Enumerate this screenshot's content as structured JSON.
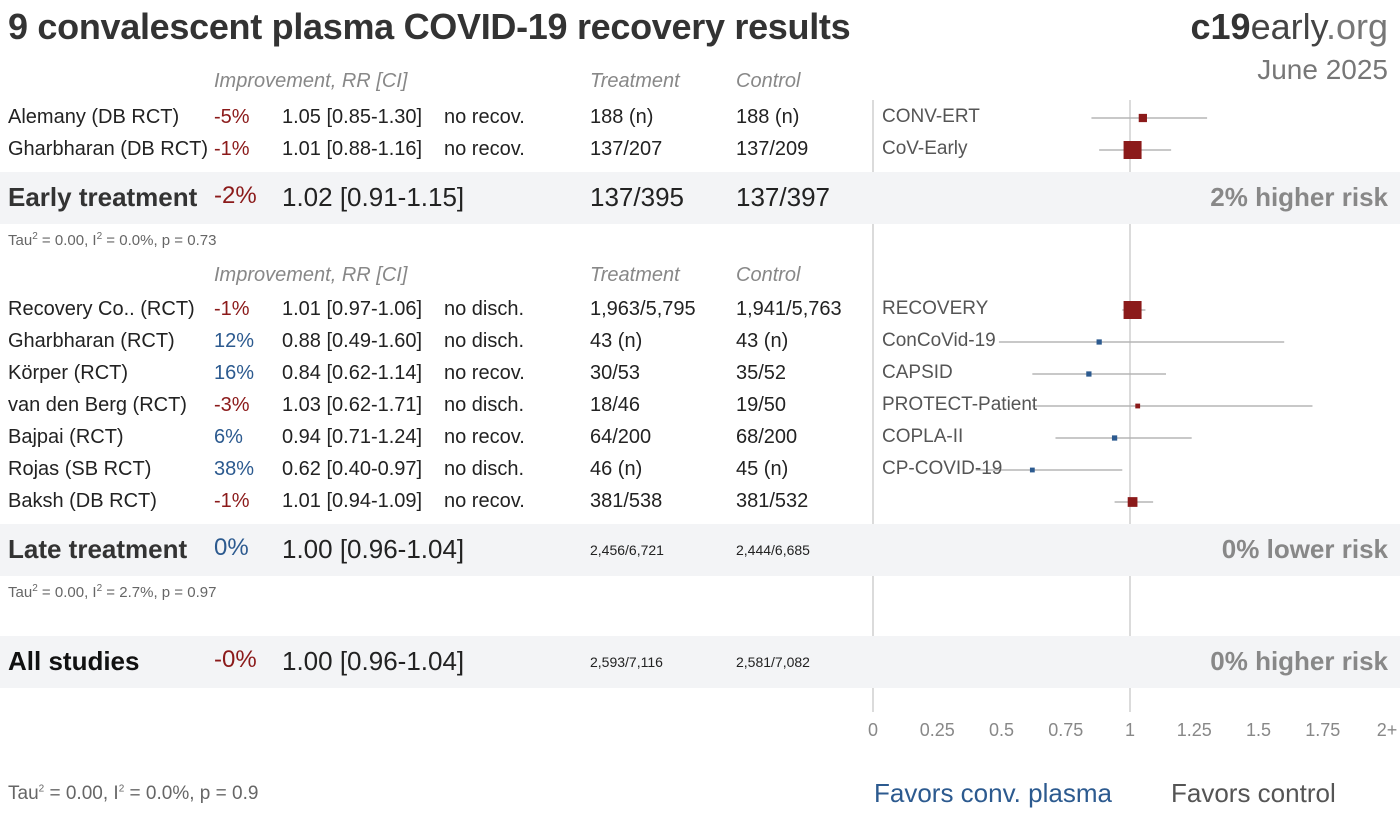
{
  "title": "9 convalescent plasma COVID-19 recovery results",
  "brand": {
    "bold": "c19",
    "light": "early",
    "domain": ".org",
    "date": "June 2025"
  },
  "headers": {
    "improvement": "Improvement, RR [CI]",
    "treatment": "Treatment",
    "control": "Control"
  },
  "colors": {
    "harm": "#8b1a1a",
    "benefit": "#2c5a8f",
    "band": "#f3f4f6"
  },
  "chart_data": {
    "type": "forest",
    "x_ticks": [
      "0",
      "0.25",
      "0.5",
      "0.75",
      "1",
      "1.25",
      "1.5",
      "1.75",
      "2+"
    ],
    "xlim": [
      0,
      2
    ],
    "groups": [
      {
        "name": "Early treatment",
        "studies": [
          {
            "study": "Alemany (DB RCT)",
            "improvement": "-5%",
            "rr_text": "1.05 [0.85-1.30]",
            "outcome": "no recov.",
            "treatment": "188 (n)",
            "control": "188 (n)",
            "trial": "CONV-ERT",
            "rr": 1.05,
            "lo": 0.85,
            "hi": 1.3,
            "weight": 0.35,
            "color": "#8b1a1a"
          },
          {
            "study": "Gharbharan (DB RCT)",
            "improvement": "-1%",
            "rr_text": "1.01 [0.88-1.16]",
            "outcome": "no recov.",
            "treatment": "137/207",
            "control": "137/209",
            "trial": "CoV-Early",
            "rr": 1.01,
            "lo": 0.88,
            "hi": 1.16,
            "weight": 1.0,
            "color": "#8b1a1a"
          }
        ],
        "summary": {
          "improvement": "-2%",
          "rr_text": "1.02 [0.91-1.15]",
          "treatment": "137/395",
          "control": "137/397",
          "rr": 1.02,
          "lo": 0.91,
          "hi": 1.15,
          "risk": "2% higher risk",
          "color": "#8b1a1a",
          "stats": {
            "tau2": "0.00",
            "i2": "0.0%",
            "p": "0.73"
          }
        }
      },
      {
        "name": "Late treatment",
        "studies": [
          {
            "study": "Recovery Co.. (RCT)",
            "improvement": "-1%",
            "rr_text": "1.01 [0.97-1.06]",
            "outcome": "no disch.",
            "treatment": "1,963/5,795",
            "control": "1,941/5,763",
            "trial": "RECOVERY",
            "rr": 1.01,
            "lo": 0.97,
            "hi": 1.06,
            "weight": 1.0,
            "color": "#8b1a1a"
          },
          {
            "study": "Gharbharan (RCT)",
            "improvement": "12%",
            "rr_text": "0.88 [0.49-1.60]",
            "outcome": "no disch.",
            "treatment": "43 (n)",
            "control": "43 (n)",
            "trial": "ConCoVid-19",
            "rr": 0.88,
            "lo": 0.49,
            "hi": 1.6,
            "weight": 0.15,
            "color": "#2c5a8f"
          },
          {
            "study": "Körper (RCT)",
            "improvement": "16%",
            "rr_text": "0.84 [0.62-1.14]",
            "outcome": "no recov.",
            "treatment": "30/53",
            "control": "35/52",
            "trial": "CAPSID",
            "rr": 0.84,
            "lo": 0.62,
            "hi": 1.14,
            "weight": 0.15,
            "color": "#2c5a8f"
          },
          {
            "study": "van den Berg (RCT)",
            "improvement": "-3%",
            "rr_text": "1.03 [0.62-1.71]",
            "outcome": "no disch.",
            "treatment": "18/46",
            "control": "19/50",
            "trial": "PROTECT-Patient",
            "rr": 1.03,
            "lo": 0.62,
            "hi": 1.71,
            "weight": 0.12,
            "color": "#8b1a1a"
          },
          {
            "study": "Bajpai (RCT)",
            "improvement": "6%",
            "rr_text": "0.94 [0.71-1.24]",
            "outcome": "no recov.",
            "treatment": "64/200",
            "control": "68/200",
            "trial": "COPLA-II",
            "rr": 0.94,
            "lo": 0.71,
            "hi": 1.24,
            "weight": 0.15,
            "color": "#2c5a8f"
          },
          {
            "study": "Rojas (SB RCT)",
            "improvement": "38%",
            "rr_text": "0.62 [0.40-0.97]",
            "outcome": "no disch.",
            "treatment": "46 (n)",
            "control": "45 (n)",
            "trial": "CP-COVID-19",
            "rr": 0.62,
            "lo": 0.4,
            "hi": 0.97,
            "weight": 0.12,
            "color": "#2c5a8f"
          },
          {
            "study": "Baksh (DB RCT)",
            "improvement": "-1%",
            "rr_text": "1.01 [0.94-1.09]",
            "outcome": "no recov.",
            "treatment": "381/538",
            "control": "381/532",
            "trial": "",
            "rr": 1.01,
            "lo": 0.94,
            "hi": 1.09,
            "weight": 0.45,
            "color": "#8b1a1a"
          }
        ],
        "summary": {
          "improvement": "0%",
          "rr_text": "1.00 [0.96-1.04]",
          "treatment": "2,456/6,721",
          "control": "2,444/6,685",
          "rr": 1.0,
          "lo": 0.96,
          "hi": 1.04,
          "risk": "0% lower risk",
          "color": "#2c5a8f",
          "stats": {
            "tau2": "0.00",
            "i2": "2.7%",
            "p": "0.97"
          }
        }
      }
    ],
    "overall": {
      "name": "All studies",
      "improvement": "-0%",
      "rr_text": "1.00 [0.96-1.04]",
      "treatment": "2,593/7,116",
      "control": "2,581/7,082",
      "rr": 1.0,
      "lo": 0.96,
      "hi": 1.04,
      "risk": "0% higher risk",
      "color": "#8b1a1a",
      "stats": {
        "tau2": "0.00",
        "i2": "0.0%",
        "p": "0.9"
      }
    },
    "favors": {
      "left": "Favors conv. plasma",
      "right": "Favors control"
    }
  }
}
